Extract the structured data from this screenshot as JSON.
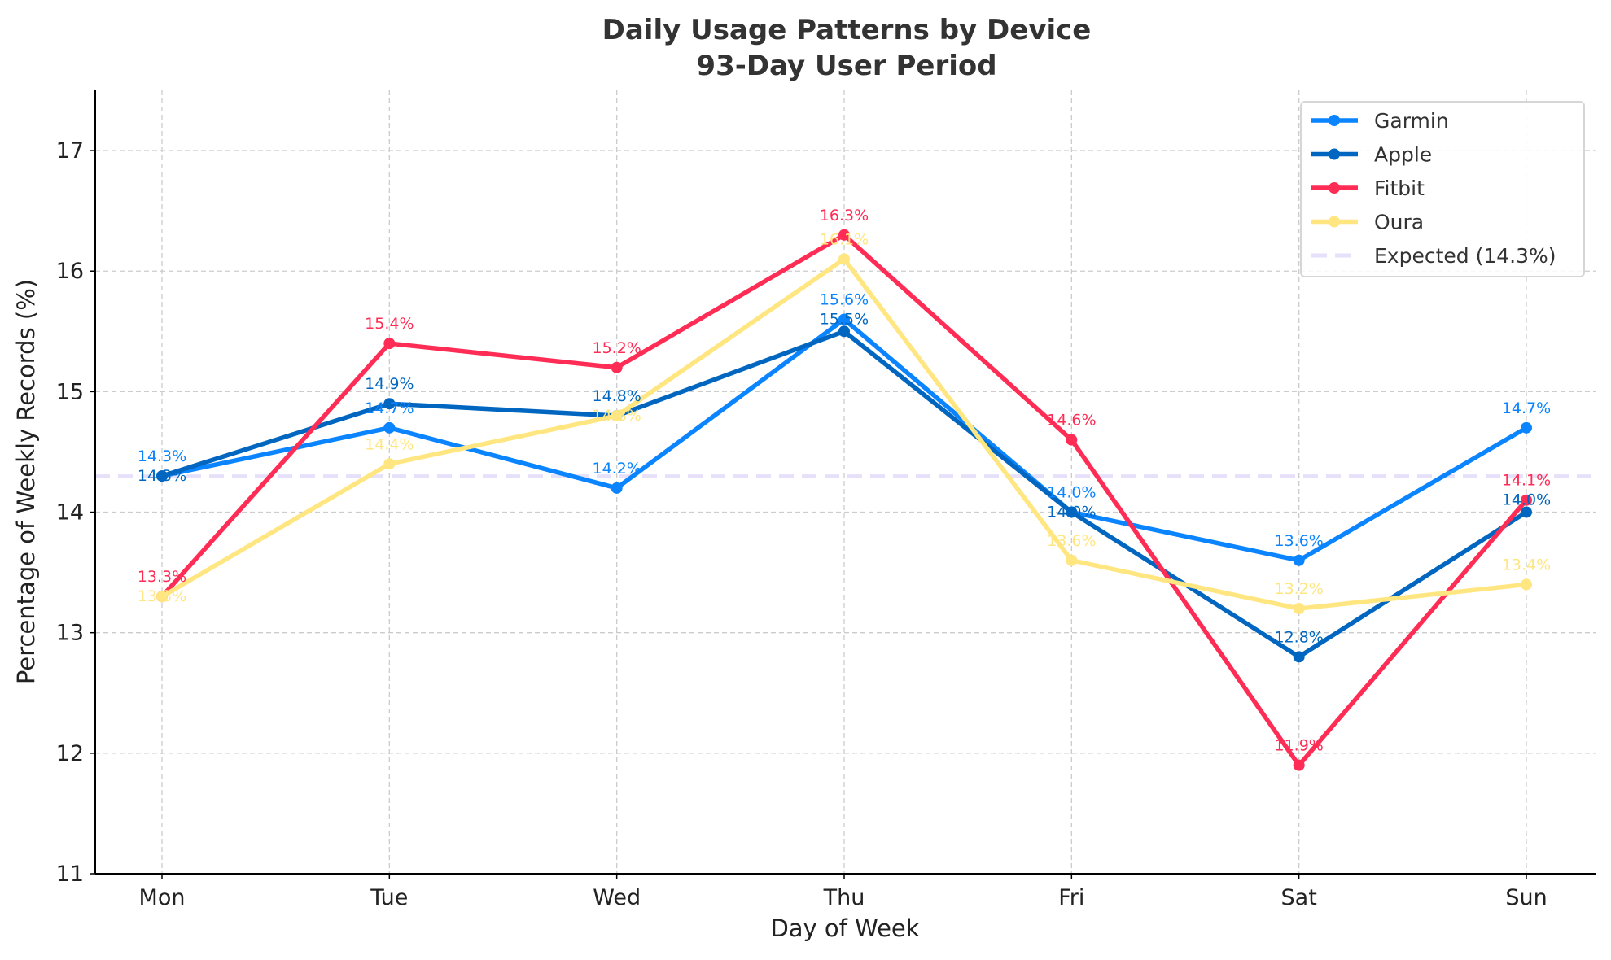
{
  "chart_data": {
    "type": "line",
    "title": "Daily Usage Patterns by Device",
    "subtitle": "93-Day User Period",
    "xlabel": "Day of Week",
    "ylabel": "Percentage of Weekly Records (%)",
    "categories": [
      "Mon",
      "Tue",
      "Wed",
      "Thu",
      "Fri",
      "Sat",
      "Sun"
    ],
    "ylim": [
      11,
      17.5
    ],
    "yticks": [
      11,
      12,
      13,
      14,
      15,
      16,
      17
    ],
    "grid": true,
    "legend_position": "top-right",
    "series": [
      {
        "name": "Garmin",
        "color": "#0a84ff",
        "values": [
          14.3,
          14.7,
          14.2,
          15.6,
          14.0,
          13.6,
          14.7
        ]
      },
      {
        "name": "Apple",
        "color": "#0066c0",
        "values": [
          14.3,
          14.9,
          14.8,
          15.5,
          14.0,
          12.8,
          14.0
        ]
      },
      {
        "name": "Fitbit",
        "color": "#ff2d55",
        "values": [
          13.3,
          15.4,
          15.2,
          16.3,
          14.6,
          11.9,
          14.1
        ]
      },
      {
        "name": "Oura",
        "color": "#ffe680",
        "values": [
          13.3,
          14.4,
          14.8,
          16.1,
          13.6,
          13.2,
          13.4
        ]
      }
    ],
    "reference_line": {
      "name": "Expected (14.3%)",
      "value": 14.3,
      "color": "#e6e0fa",
      "style": "dashed"
    }
  }
}
